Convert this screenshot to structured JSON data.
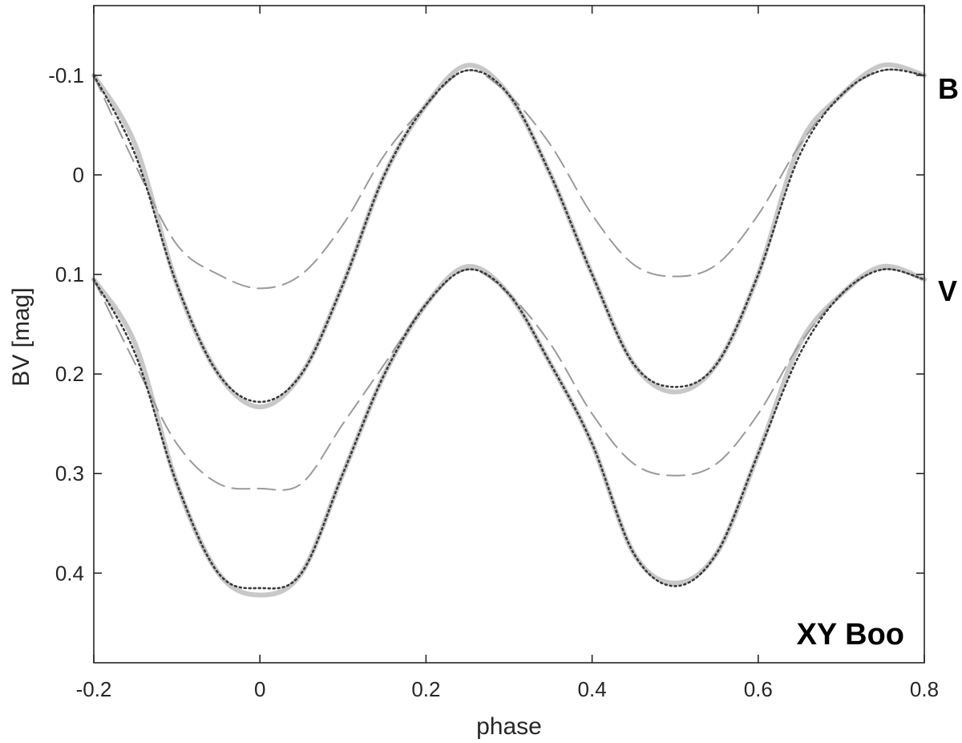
{
  "chart_data": {
    "type": "line",
    "title": "",
    "xlabel": "phase",
    "ylabel": "BV  [mag]",
    "xlim": [
      -0.2,
      0.8
    ],
    "ylim": [
      -0.17,
      0.49
    ],
    "y_reversed": true,
    "grid": false,
    "x_ticks": [
      -0.2,
      0,
      0.2,
      0.4,
      0.6,
      0.8
    ],
    "x_tick_labels": [
      "-0.2",
      "0",
      "0.2",
      "0.4",
      "0.6",
      "0.8"
    ],
    "y_ticks": [
      -0.1,
      0,
      0.1,
      0.2,
      0.3,
      0.4
    ],
    "y_tick_labels": [
      "-0.1",
      "0",
      "0.1",
      "0.2",
      "0.3",
      "0.4"
    ],
    "annotations": {
      "star": "XY Boo",
      "band_b": "B",
      "band_v": "V"
    },
    "styles": {
      "observed": {
        "color": "#c8c8c8",
        "dash": "solid"
      },
      "model": {
        "color": "#3a3a3a",
        "dash": "dotted"
      },
      "component": {
        "color": "#9a9a9a",
        "dash": "dashed"
      }
    },
    "x": [
      -0.2,
      -0.15,
      -0.1,
      -0.05,
      0,
      0.05,
      0.1,
      0.15,
      0.2,
      0.25,
      0.3,
      0.35,
      0.4,
      0.45,
      0.5,
      0.55,
      0.6,
      0.65,
      0.7,
      0.75,
      0.8
    ],
    "series": [
      {
        "group": "B",
        "style": "observed",
        "values": [
          -0.1,
          -0.03,
          0.11,
          0.2,
          0.233,
          0.2,
          0.11,
          0.0,
          -0.07,
          -0.11,
          -0.08,
          0.0,
          0.1,
          0.19,
          0.218,
          0.19,
          0.1,
          -0.03,
          -0.08,
          -0.11,
          -0.1
        ]
      },
      {
        "group": "B",
        "style": "model",
        "values": [
          -0.1,
          -0.02,
          0.11,
          0.2,
          0.228,
          0.2,
          0.11,
          0.0,
          -0.07,
          -0.105,
          -0.08,
          0.0,
          0.1,
          0.19,
          0.213,
          0.19,
          0.1,
          -0.02,
          -0.08,
          -0.105,
          -0.1
        ]
      },
      {
        "group": "B",
        "style": "component",
        "values": [
          -0.1,
          -0.01,
          0.07,
          0.1,
          0.114,
          0.1,
          0.05,
          -0.02,
          -0.07,
          -0.105,
          -0.08,
          -0.03,
          0.04,
          0.09,
          0.102,
          0.09,
          0.04,
          -0.03,
          -0.08,
          -0.105,
          -0.1
        ]
      },
      {
        "group": "V",
        "style": "observed",
        "values": [
          0.105,
          0.17,
          0.31,
          0.4,
          0.422,
          0.4,
          0.3,
          0.2,
          0.13,
          0.092,
          0.12,
          0.19,
          0.27,
          0.38,
          0.41,
          0.38,
          0.28,
          0.17,
          0.12,
          0.092,
          0.105
        ]
      },
      {
        "group": "V",
        "style": "model",
        "values": [
          0.105,
          0.18,
          0.31,
          0.4,
          0.415,
          0.4,
          0.3,
          0.2,
          0.13,
          0.095,
          0.12,
          0.19,
          0.27,
          0.38,
          0.413,
          0.38,
          0.28,
          0.18,
          0.12,
          0.095,
          0.105
        ]
      },
      {
        "group": "V",
        "style": "component",
        "values": [
          0.105,
          0.19,
          0.27,
          0.31,
          0.315,
          0.31,
          0.25,
          0.19,
          0.13,
          0.095,
          0.12,
          0.17,
          0.24,
          0.29,
          0.302,
          0.29,
          0.24,
          0.17,
          0.12,
          0.095,
          0.105
        ]
      }
    ]
  }
}
